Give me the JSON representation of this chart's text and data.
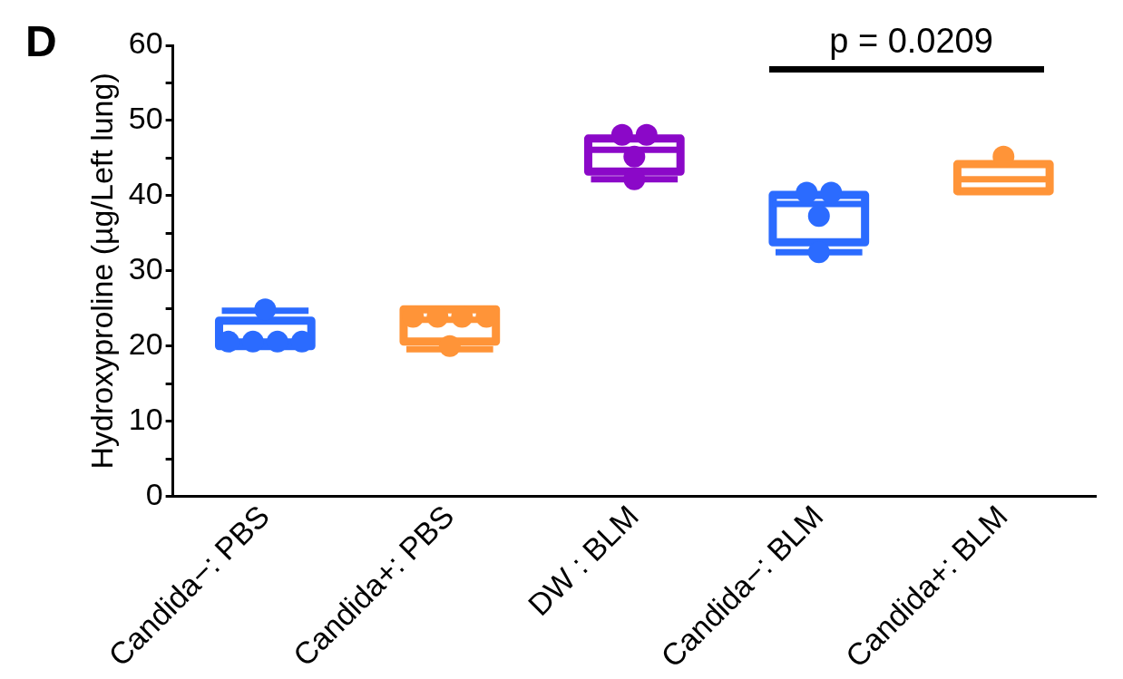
{
  "chart_data": {
    "type": "box",
    "ylabel": "Hydroxyproline (µg/Left lung)",
    "categories": [
      "Candida−: PBS",
      "Candida+: PBS",
      "DW : BLM",
      "Candida−: BLM",
      "Candida+: BLM"
    ],
    "colors": [
      "#2b6bff",
      "#ff9438",
      "#8b08c8",
      "#2b6bff",
      "#ff9438"
    ],
    "boxes": [
      {
        "low": 20.0,
        "q1": 20.0,
        "median": 20.6,
        "q3": 23.4,
        "high": 24.7
      },
      {
        "low": 19.6,
        "q1": 20.6,
        "median": 23.5,
        "q3": 24.9,
        "high": 24.9
      },
      {
        "low": 42.2,
        "q1": 43.2,
        "median": 46.1,
        "q3": 47.6,
        "high": 47.6
      },
      {
        "low": 32.5,
        "q1": 33.8,
        "median": 38.9,
        "q3": 40.1,
        "high": 40.1
      },
      {
        "low": 40.6,
        "q1": 40.6,
        "median": 42.2,
        "q3": 44.2,
        "high": 44.2
      }
    ],
    "series": [
      {
        "type": "scatter",
        "color": "#2b6bff",
        "x": [
          "Candida−: PBS",
          "Candida−: PBS",
          "Candida−: PBS",
          "Candida−: PBS",
          "Candida−: PBS"
        ],
        "values": [
          20.6,
          20.6,
          20.6,
          20.6,
          24.9
        ]
      },
      {
        "type": "scatter",
        "color": "#ff9438",
        "x": [
          "Candida+: PBS",
          "Candida+: PBS",
          "Candida+: PBS",
          "Candida+: PBS",
          "Candida+: PBS"
        ],
        "values": [
          23.9,
          23.9,
          23.9,
          23.9,
          20.0
        ]
      },
      {
        "type": "scatter",
        "color": "#8b08c8",
        "x": [
          "DW : BLM",
          "DW : BLM",
          "DW : BLM",
          "DW : BLM"
        ],
        "values": [
          48.1,
          48.1,
          45.2,
          42.2
        ]
      },
      {
        "type": "scatter",
        "color": "#2b6bff",
        "x": [
          "Candida−: BLM",
          "Candida−: BLM",
          "Candida−: BLM",
          "Candida−: BLM"
        ],
        "values": [
          40.4,
          40.4,
          37.3,
          32.5
        ]
      },
      {
        "type": "scatter",
        "color": "#ff9438",
        "x": [
          "Candida+: BLM"
        ],
        "values": [
          45.2
        ]
      }
    ],
    "ylim": [
      0,
      60
    ],
    "yticks": [
      0,
      {
        "value": 5,
        "label": null
      },
      10,
      {
        "value": 15,
        "label": null
      },
      20,
      {
        "value": 25,
        "label": null
      },
      30,
      {
        "value": 35,
        "label": null
      },
      40,
      {
        "value": 45,
        "label": null
      },
      50,
      {
        "value": 55,
        "label": null
      },
      60
    ],
    "marker": "circle",
    "grid": false,
    "legend": false,
    "annotations": [
      "D",
      "p = 0.0209"
    ]
  }
}
